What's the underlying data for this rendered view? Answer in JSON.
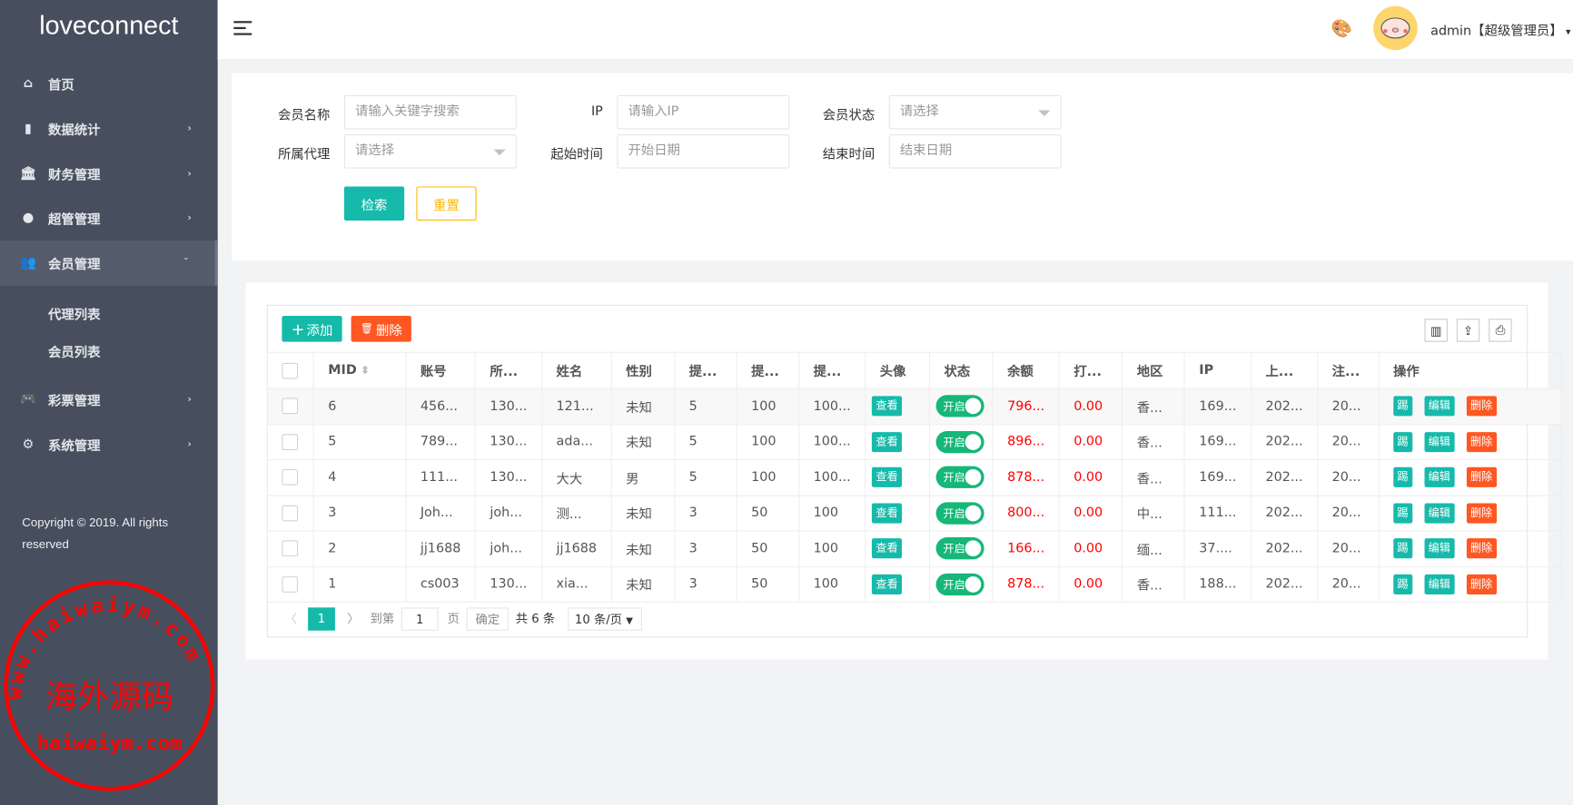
{
  "app": {
    "logo": "loveconnect"
  },
  "sidebar": {
    "items": [
      {
        "label": "首页",
        "icon": "home-icon",
        "arrow": ""
      },
      {
        "label": "数据统计",
        "icon": "bar-chart-icon",
        "arrow": "›"
      },
      {
        "label": "财务管理",
        "icon": "bank-icon",
        "arrow": "›"
      },
      {
        "label": "超管管理",
        "icon": "user-icon",
        "arrow": "›"
      },
      {
        "label": "会员管理",
        "icon": "users-icon",
        "arrow": "ˇ"
      },
      {
        "label": "彩票管理",
        "icon": "gamepad-icon",
        "arrow": "›"
      },
      {
        "label": "系统管理",
        "icon": "gear-icon",
        "arrow": "›"
      }
    ],
    "subitems": [
      {
        "label": "代理列表"
      },
      {
        "label": "会员列表"
      }
    ],
    "copyright": "Copyright © 2019. All rights reserved"
  },
  "header": {
    "user": "admin【超级管理员】",
    "caret": "▾"
  },
  "search": {
    "name_label": "会员名称",
    "name_placeholder": "请输入关键字搜索",
    "ip_label": "IP",
    "ip_placeholder": "请输入IP",
    "status_label": "会员状态",
    "status_placeholder": "请选择",
    "agent_label": "所属代理",
    "agent_placeholder": "请选择",
    "start_label": "起始时间",
    "start_placeholder": "开始日期",
    "end_label": "结束时间",
    "end_placeholder": "结束日期",
    "search_btn": "检索",
    "reset_btn": "重置"
  },
  "toolbar": {
    "add": "添加",
    "delete": "删除"
  },
  "table": {
    "headers": [
      "MID",
      "账号",
      "所...",
      "姓名",
      "性别",
      "提...",
      "提...",
      "提...",
      "头像",
      "状态",
      "余额",
      "打...",
      "地区",
      "IP",
      "上...",
      "注...",
      "操作"
    ],
    "view_label": "查看",
    "switch_label": "开启",
    "kick": "踢",
    "edit": "编辑",
    "del": "删除",
    "rows": [
      [
        "6",
        "456...",
        "130...",
        "121...",
        "未知",
        "5",
        "100",
        "100...",
        "796...",
        "0.00",
        "香...",
        "169...",
        "202...",
        "20..."
      ],
      [
        "5",
        "789...",
        "130...",
        "ada...",
        "未知",
        "5",
        "100",
        "100...",
        "896...",
        "0.00",
        "香...",
        "169...",
        "202...",
        "20..."
      ],
      [
        "4",
        "111...",
        "130...",
        "大大",
        "男",
        "5",
        "100",
        "100...",
        "878...",
        "0.00",
        "香...",
        "169...",
        "202...",
        "20..."
      ],
      [
        "3",
        "Joh...",
        "joh...",
        "测...",
        "未知",
        "3",
        "50",
        "100",
        "800...",
        "0.00",
        "中...",
        "111...",
        "202...",
        "20..."
      ],
      [
        "2",
        "jj1688",
        "joh...",
        "jj1688",
        "未知",
        "3",
        "50",
        "100",
        "166...",
        "0.00",
        "缅...",
        "37....",
        "202...",
        "20..."
      ],
      [
        "1",
        "cs003",
        "130...",
        "xia...",
        "未知",
        "3",
        "50",
        "100",
        "878...",
        "0.00",
        "香...",
        "188...",
        "202...",
        "20..."
      ]
    ]
  },
  "pagination": {
    "current": "1",
    "goto": "到第",
    "page_input": "1",
    "page_unit": "页",
    "confirm": "确定",
    "total": "共 6 条",
    "page_size": "10 条/页"
  },
  "watermark": {
    "text_cn": "海外源码",
    "text_url": "haiwaiym.com",
    "ring": "www.haiwaiym.com"
  },
  "colors": {
    "sidebar": "#474f5e",
    "primary": "#16baaa",
    "danger": "#ff5722",
    "warning": "#ffb800",
    "switch_on": "#16b777",
    "amount": "#ff0000"
  }
}
